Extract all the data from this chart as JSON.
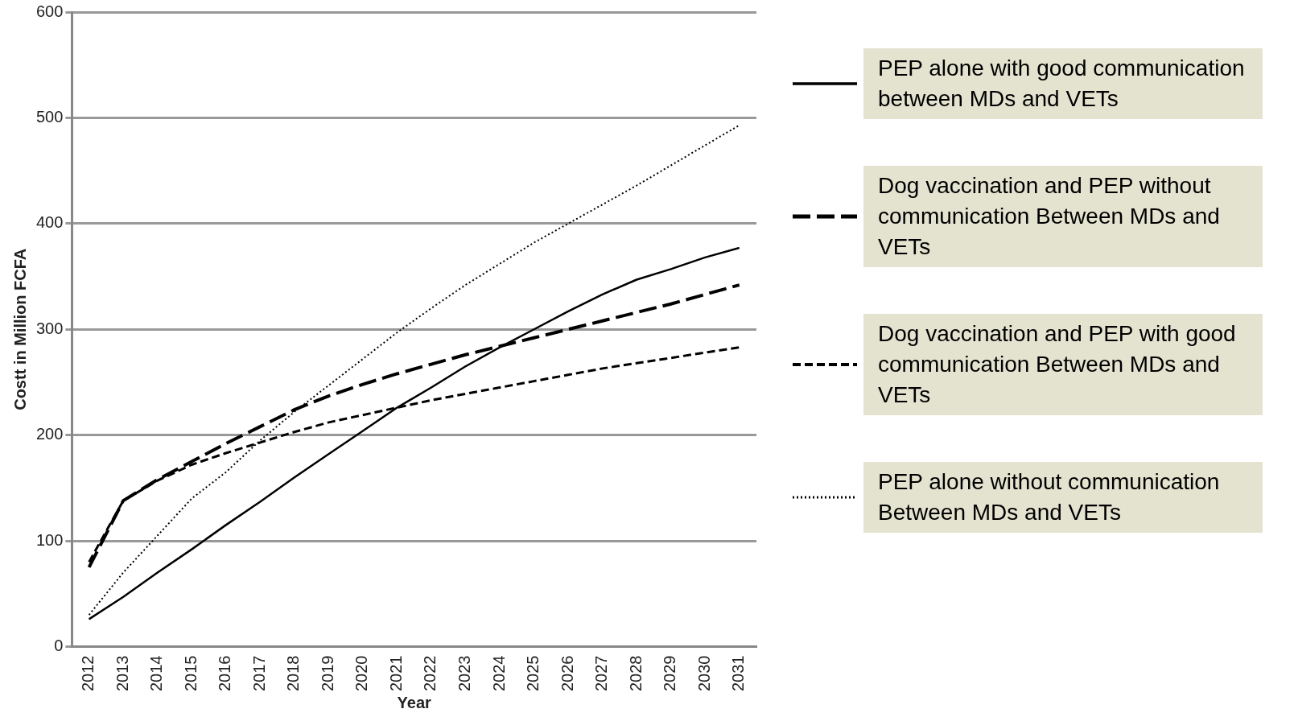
{
  "chart_data": {
    "type": "line",
    "xlabel": "Year",
    "ylabel": "Costt in Million FCFA",
    "categories": [
      "2012",
      "2013",
      "2014",
      "2015",
      "2016",
      "2017",
      "2018",
      "2019",
      "2020",
      "2021",
      "2022",
      "2023",
      "2024",
      "2025",
      "2026",
      "2027",
      "2028",
      "2029",
      "2030",
      "2031"
    ],
    "ylim": [
      0,
      600
    ],
    "yticks": [
      0,
      100,
      200,
      300,
      400,
      500,
      600
    ],
    "grid": "y",
    "legend": "right",
    "marker": "none",
    "series": [
      {
        "name": "PEP alone with good communication between MDs and VETs",
        "color": "#000000",
        "line_style": "solid",
        "values": [
          26,
          47,
          70,
          92,
          115,
          137,
          160,
          182,
          204,
          226,
          245,
          265,
          283,
          300,
          317,
          333,
          347,
          357,
          368,
          377
        ]
      },
      {
        "name": "Dog vaccination and PEP without communication Between MDs and VETs",
        "color": "#000000",
        "line_style": "dashed",
        "values": [
          75,
          138,
          158,
          175,
          192,
          208,
          224,
          237,
          248,
          258,
          267,
          276,
          284,
          292,
          300,
          308,
          316,
          324,
          333,
          342
        ]
      },
      {
        "name": "Dog vaccination and PEP with good communication Between MDs and VETs",
        "color": "#000000",
        "line_style": "dashed",
        "values": [
          80,
          138,
          157,
          172,
          183,
          193,
          203,
          212,
          219,
          226,
          233,
          239,
          245,
          251,
          257,
          263,
          268,
          273,
          278,
          283
        ]
      },
      {
        "name": "PEP alone without communication Between MDs and VETs",
        "color": "#000000",
        "line_style": "dotted",
        "values": [
          30,
          70,
          105,
          140,
          165,
          195,
          222,
          247,
          272,
          297,
          320,
          342,
          362,
          382,
          400,
          418,
          436,
          455,
          474,
          493
        ]
      }
    ]
  }
}
